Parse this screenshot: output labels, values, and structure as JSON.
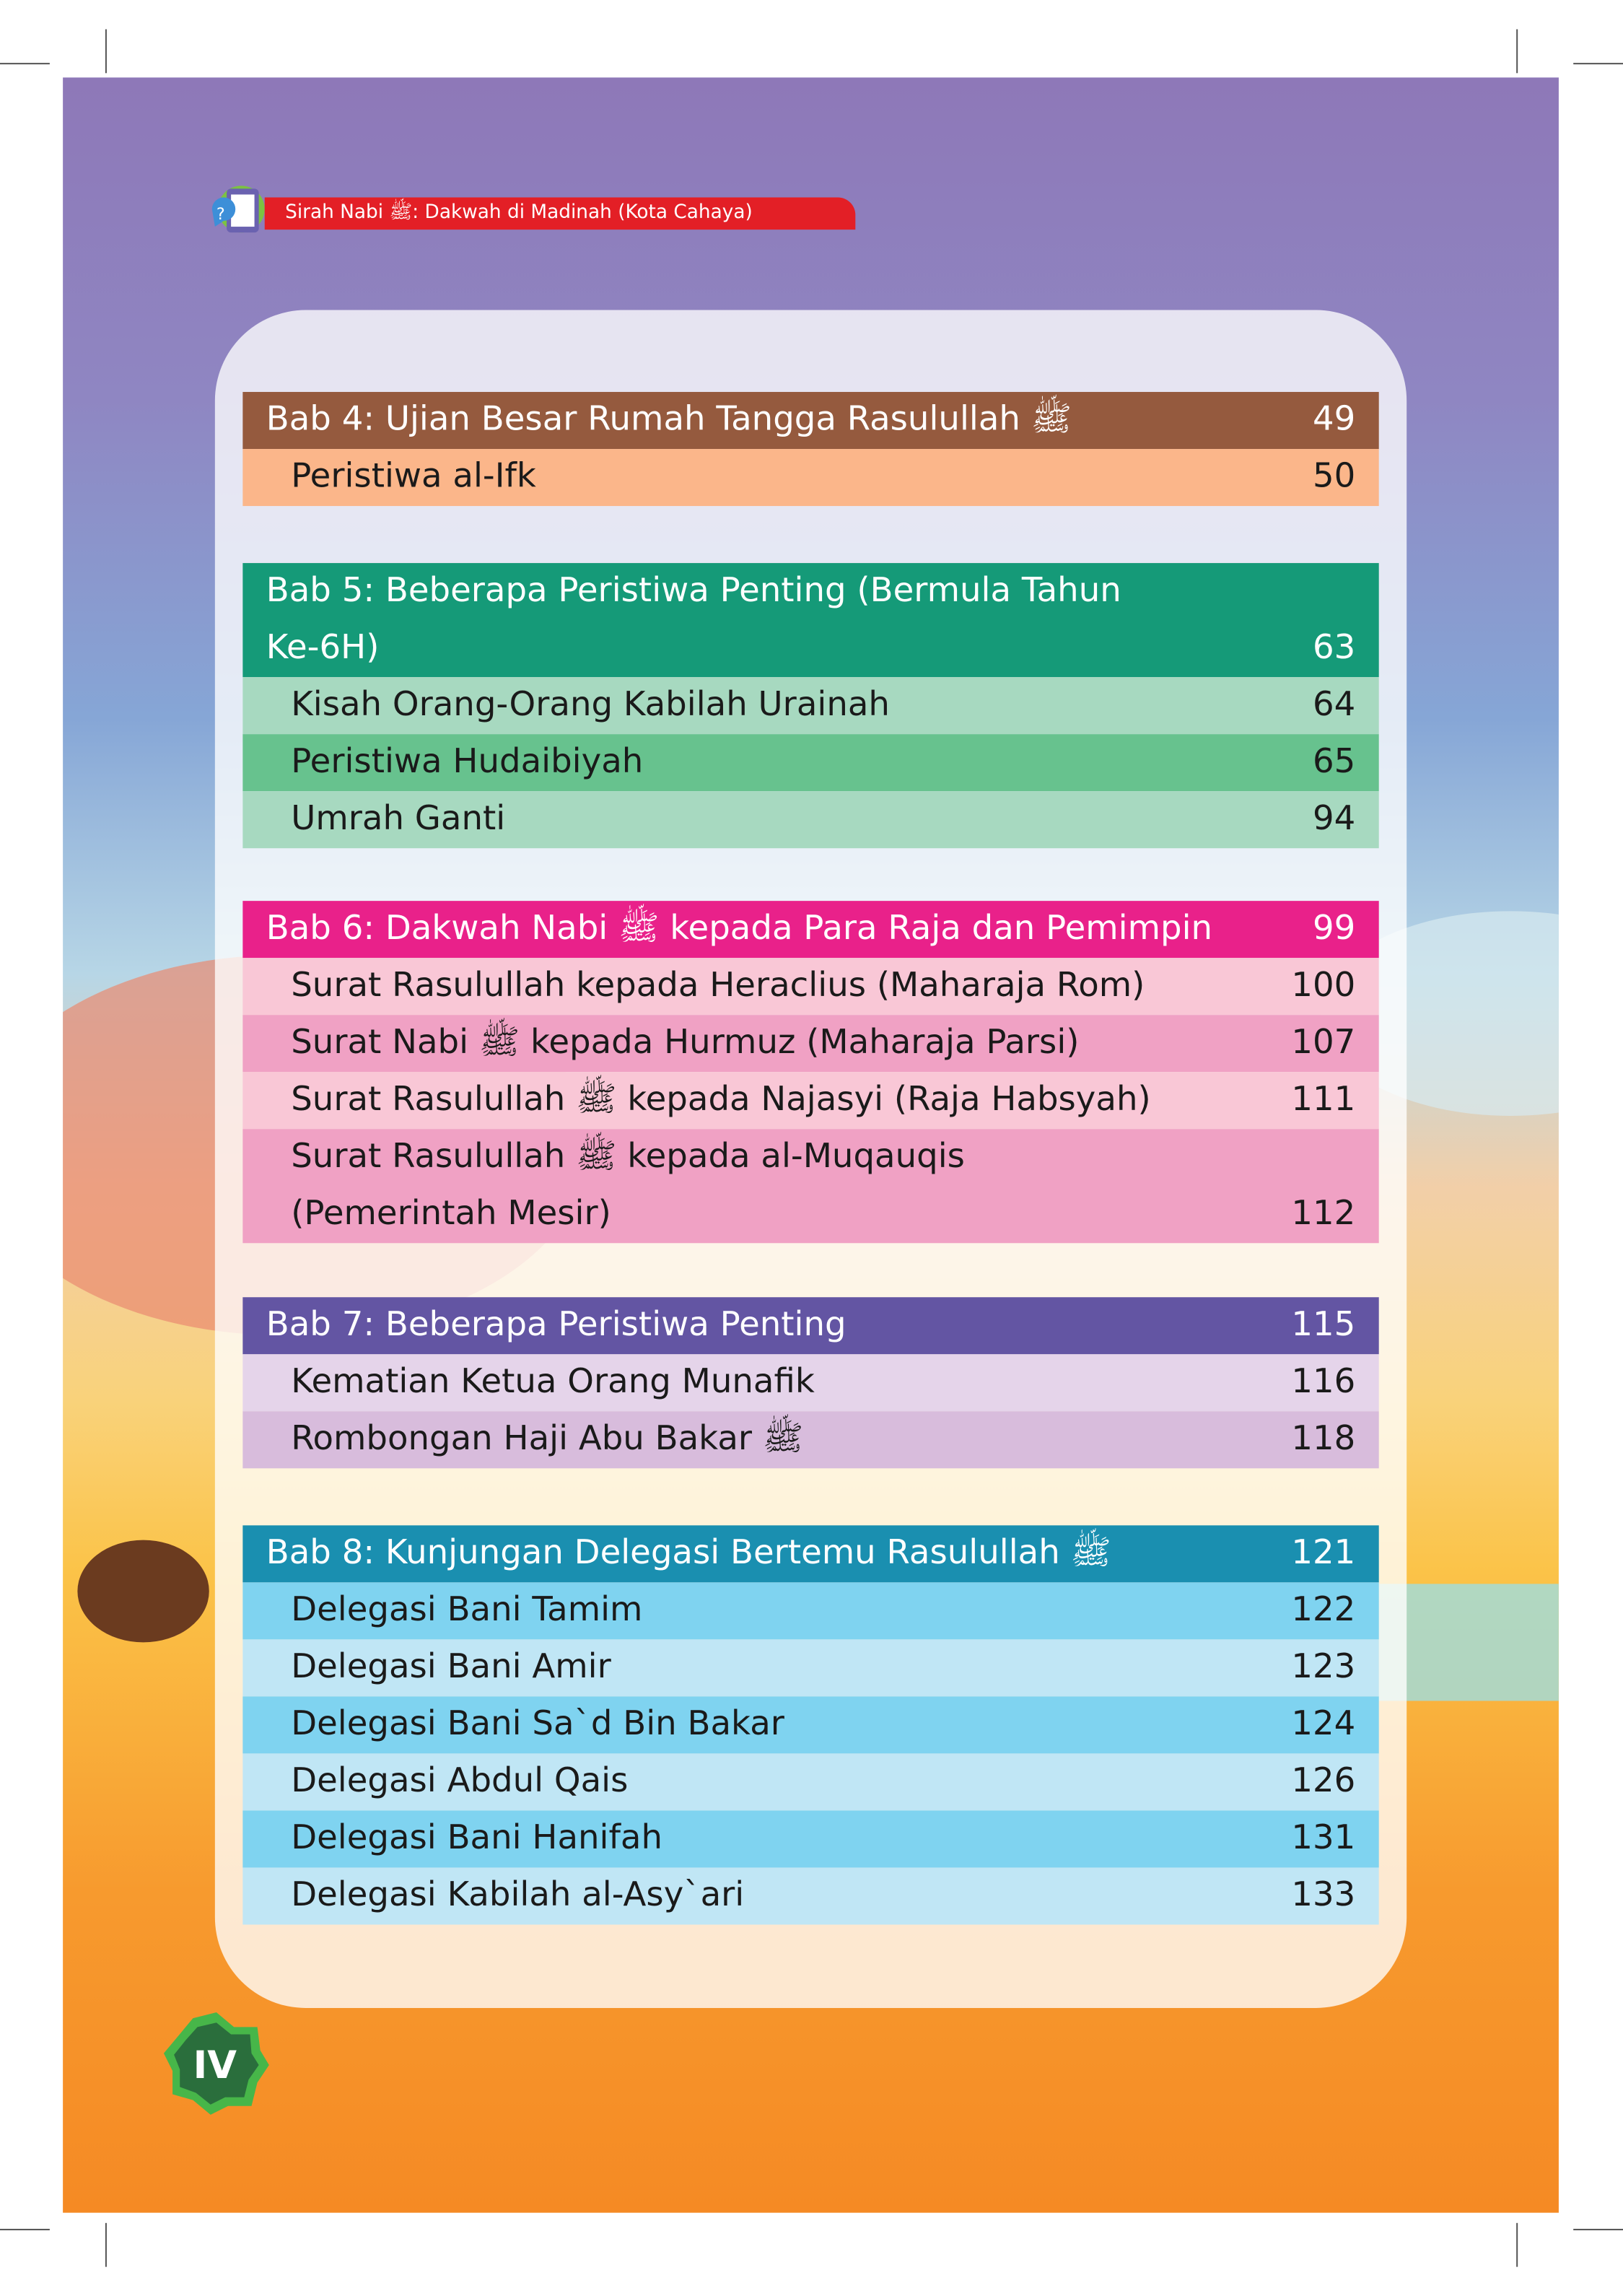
{
  "header": {
    "title": "Sirah Nabi ﷺ: Dakwah di Madinah (Kota Cahaya)"
  },
  "page_number": "IV",
  "colors": {
    "header_red": "#e31f26",
    "badge_green": "#2a6e3c"
  },
  "sections": [
    {
      "header": {
        "title": "Bab 4: Ujian Besar Rumah Tangga Rasulullah ﷺ",
        "page": "49",
        "color": "#955a3e"
      },
      "items": [
        {
          "title": "Peristiwa al-Ifk",
          "page": "50",
          "color": "#fbb68a"
        }
      ]
    },
    {
      "header": {
        "title": "Bab 5: Beberapa Peristiwa Penting (Bermula Tahun Ke-6H)",
        "page": "63",
        "color": "#159a78",
        "lines": 2
      },
      "items": [
        {
          "title": "Kisah Orang-Orang Kabilah Urainah",
          "page": "64",
          "color": "#a7d9c0"
        },
        {
          "title": "Peristiwa Hudaibiyah",
          "page": "65",
          "color": "#67c28e"
        },
        {
          "title": "Umrah Ganti",
          "page": "94",
          "color": "#a7d9c0"
        }
      ]
    },
    {
      "header": {
        "title": "Bab 6: Dakwah Nabi ﷺ kepada Para Raja dan Pemimpin",
        "page": "99",
        "color": "#e9218a"
      },
      "items": [
        {
          "title": "Surat Rasulullah kepada Heraclius (Maharaja Rom)",
          "page": "100",
          "color": "#f9c7d6"
        },
        {
          "title": "Surat Nabi ﷺ kepada Hurmuz (Maharaja Parsi)",
          "page": "107",
          "color": "#f0a1c4"
        },
        {
          "title": "Surat Rasulullah ﷺ kepada Najasyi (Raja Habsyah)",
          "page": "111",
          "color": "#f9c7d6"
        },
        {
          "title": "Surat Rasulullah ﷺ kepada al-Muqauqis (Pemerintah Mesir)",
          "page": "112",
          "color": "#f0a1c4",
          "lines": 2
        }
      ]
    },
    {
      "header": {
        "title": "Bab 7: Beberapa Peristiwa Penting",
        "page": "115",
        "color": "#6355a3"
      },
      "items": [
        {
          "title": "Kematian Ketua Orang Munafik",
          "page": "116",
          "color": "#e5d4ea"
        },
        {
          "title": "Rombongan Haji Abu Bakar ﷺ",
          "page": "118",
          "color": "#d8bcdc"
        }
      ]
    },
    {
      "header": {
        "title": "Bab 8: Kunjungan Delegasi Bertemu Rasulullah ﷺ",
        "page": "121",
        "color": "#1a8fb0"
      },
      "items": [
        {
          "title": "Delegasi Bani Tamim",
          "page": "122",
          "color": "#7fd3f0"
        },
        {
          "title": "Delegasi Bani Amir",
          "page": "123",
          "color": "#c0e6f5"
        },
        {
          "title": "Delegasi Bani Sa`d Bin Bakar",
          "page": "124",
          "color": "#7fd3f0"
        },
        {
          "title": "Delegasi Abdul Qais",
          "page": "126",
          "color": "#c0e6f5"
        },
        {
          "title": "Delegasi Bani Hanifah",
          "page": "131",
          "color": "#7fd3f0"
        },
        {
          "title": "Delegasi Kabilah al-Asy`ari",
          "page": "133",
          "color": "#c0e6f5"
        }
      ]
    }
  ]
}
